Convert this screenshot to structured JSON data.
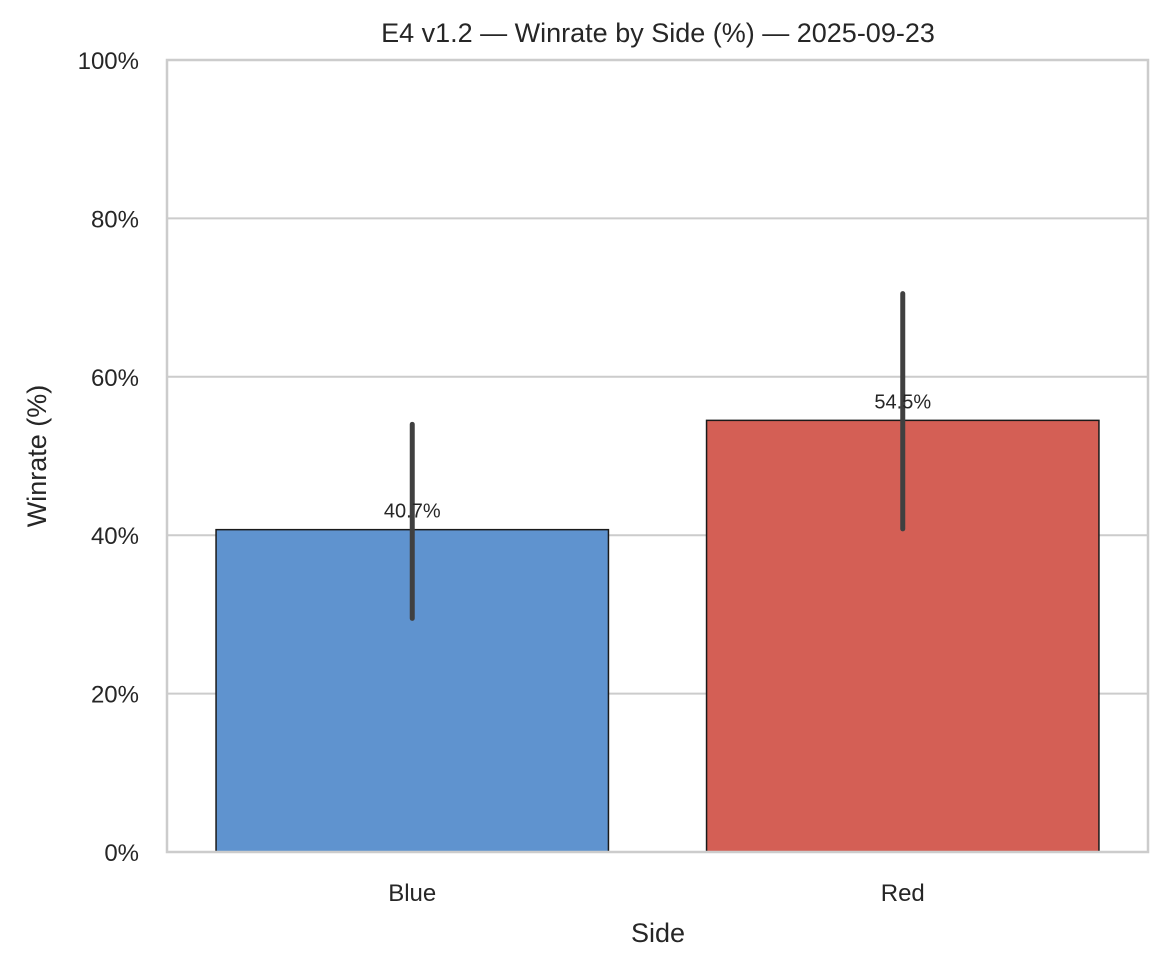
{
  "chart_data": {
    "type": "bar",
    "title": "E4 v1.2 — Winrate by Side (%) — 2025-09-23",
    "xlabel": "Side",
    "ylabel": "Winrate (%)",
    "categories": [
      "Blue",
      "Red"
    ],
    "values": [
      40.7,
      54.5
    ],
    "error_bars": [
      {
        "low": 29.5,
        "high": 54.0
      },
      {
        "low": 40.8,
        "high": 70.5
      }
    ],
    "data_labels": [
      "40.7%",
      "54.5%"
    ],
    "ylim": [
      0,
      100
    ],
    "yticks": [
      0,
      20,
      40,
      60,
      80,
      100
    ],
    "ytick_labels": [
      "0%",
      "20%",
      "40%",
      "60%",
      "80%",
      "100%"
    ],
    "grid": "horizontal",
    "legend": "none",
    "colors": {
      "Blue": "#5f93cf",
      "Red": "#d45f55",
      "edge": "#1a1a1a",
      "errorbar": "#404040",
      "grid": "#cccccc",
      "frame": "#cccccc"
    }
  }
}
